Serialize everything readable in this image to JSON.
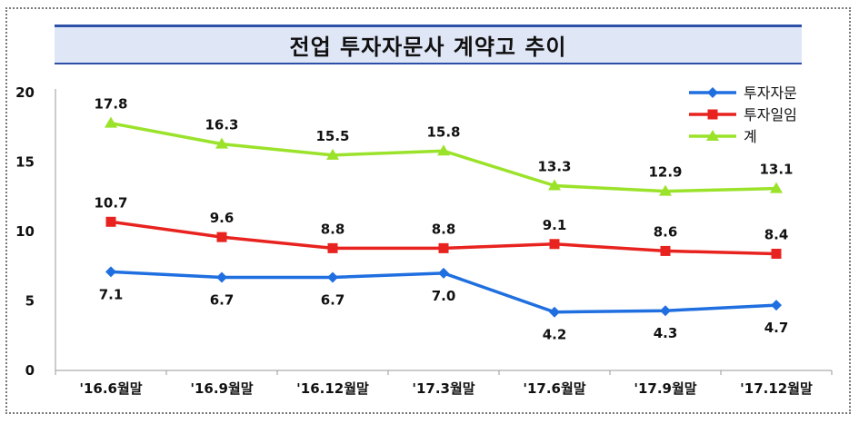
{
  "title": "전업 투자자문사 계약고 추이",
  "chart_data": {
    "type": "line",
    "title": "전업 투자자문사 계약고 추이",
    "categories": [
      "'16.6월말",
      "'16.9월말",
      "'16.12월말",
      "'17.3월말",
      "'17.6월말",
      "'17.9월말",
      "'17.12월말"
    ],
    "ylim": [
      0,
      20
    ],
    "yticks": [
      0,
      5,
      10,
      15,
      20
    ],
    "grid": false,
    "legend_position": "top-right",
    "series": [
      {
        "name": "투자자문",
        "color": "#1f6fe0",
        "marker": "diamond",
        "label_pos": "below",
        "values": [
          7.1,
          6.7,
          6.7,
          7.0,
          4.2,
          4.3,
          4.7
        ]
      },
      {
        "name": "투자일임",
        "color": "#e8231f",
        "marker": "square",
        "label_pos": "above",
        "values": [
          10.7,
          9.6,
          8.8,
          8.8,
          9.1,
          8.6,
          8.4
        ]
      },
      {
        "name": "계",
        "color": "#9be22a",
        "marker": "triangle",
        "label_pos": "above",
        "values": [
          17.8,
          16.3,
          15.5,
          15.8,
          13.3,
          12.9,
          13.1
        ]
      }
    ]
  }
}
